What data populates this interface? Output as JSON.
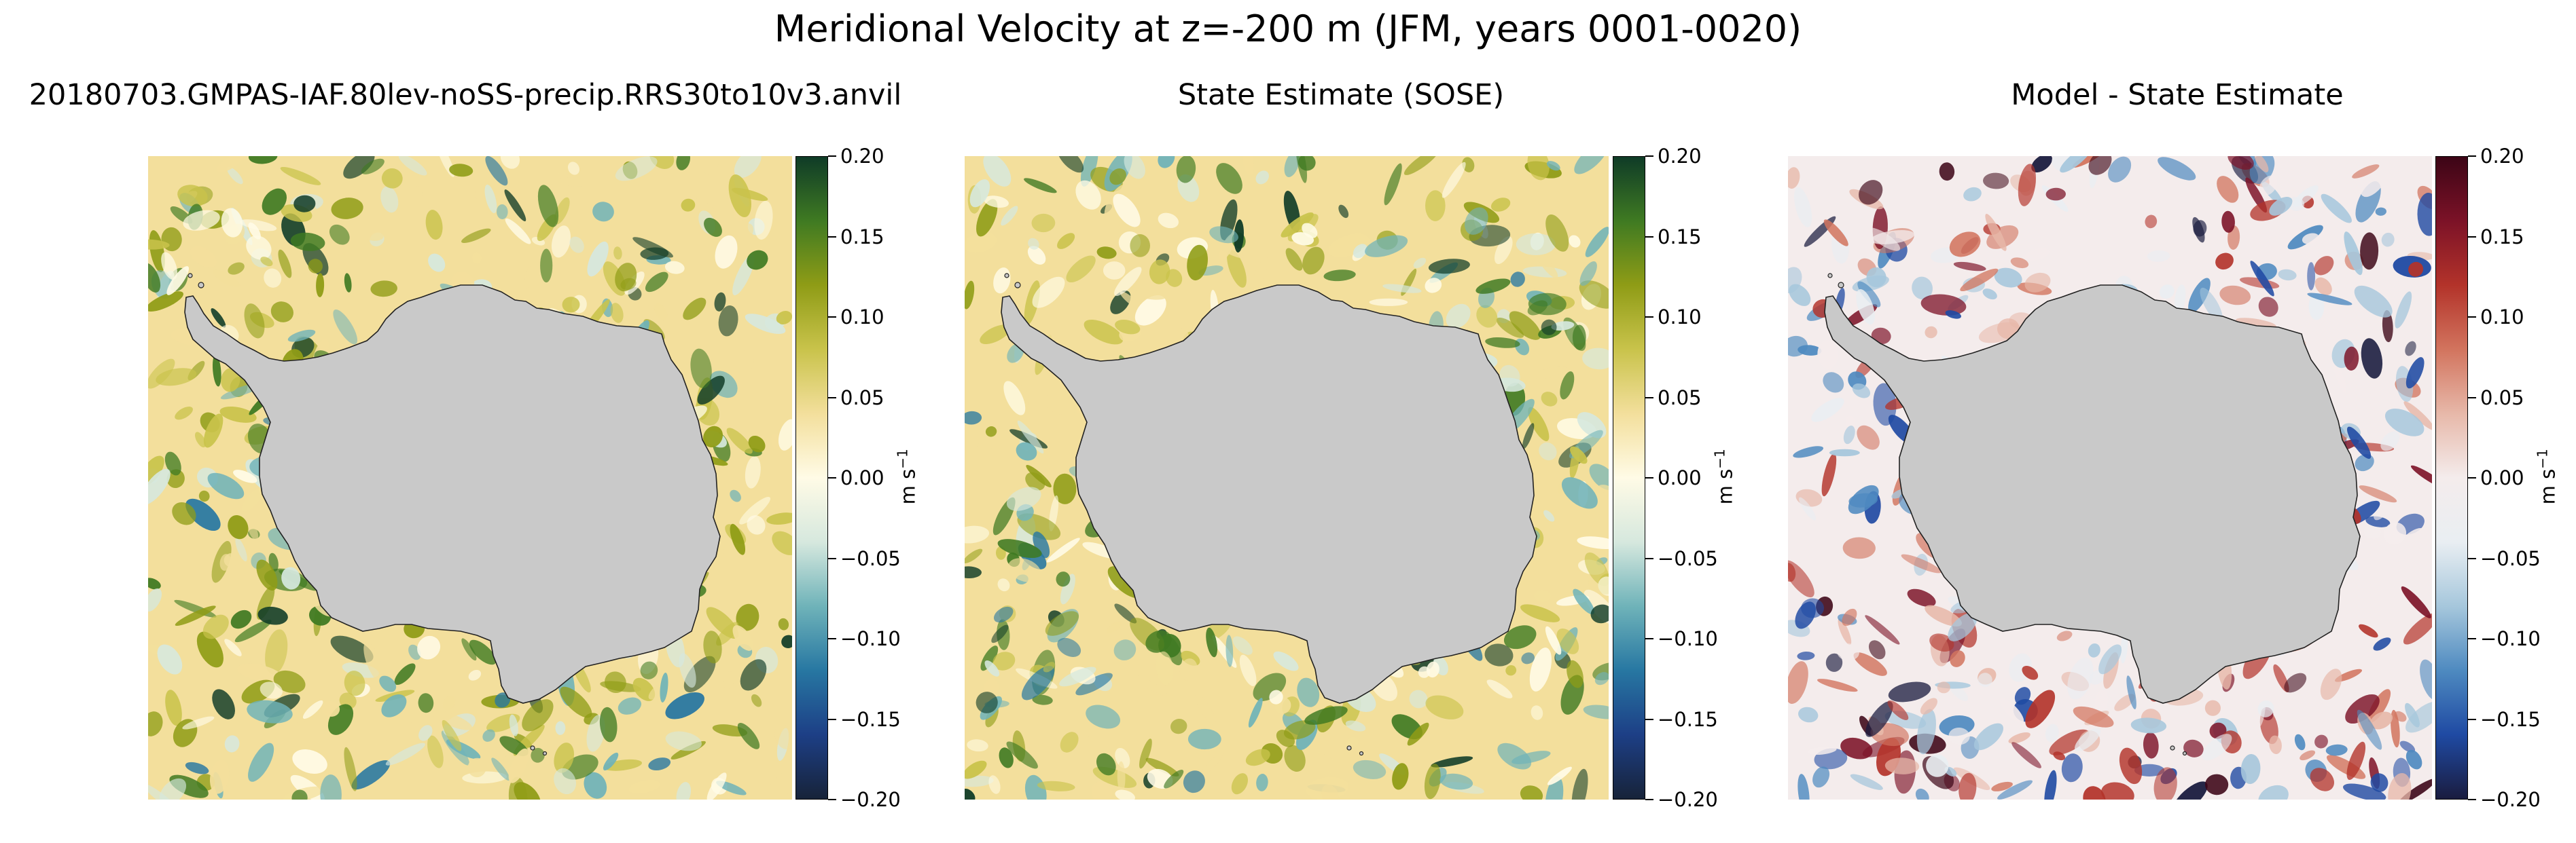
{
  "suptitle": "Meridional Velocity at z=-200 m (JFM, years 0001-0020)",
  "colors": {
    "land": "#c9c9c9",
    "coastline": "#222222",
    "ocean_background": "#fdf6d8",
    "cmap_diverging_green": [
      "#172339",
      "#1d3f86",
      "#2777a2",
      "#6fb3b9",
      "#d6e8de",
      "#fffbe6",
      "#f3df9c",
      "#c9c34b",
      "#8f9c16",
      "#3f7a22",
      "#0f3b27"
    ],
    "cmap_diverging_red": [
      "#1a1c3f",
      "#1f4aa3",
      "#4e8ac0",
      "#a6c7dc",
      "#e9eef2",
      "#f4ecec",
      "#e7b8a9",
      "#d2745e",
      "#b3332a",
      "#7c1227",
      "#3c0516"
    ]
  },
  "panels": [
    {
      "title": "20180703.GMPAS-IAF.80lev-noSS-precip.RRS30to10v3.anvil",
      "colorbar": {
        "ticks": [
          "0.20",
          "0.15",
          "0.10",
          "0.05",
          "0.00",
          "−0.05",
          "−0.10",
          "−0.15",
          "−0.20"
        ],
        "label": "m s",
        "label_exp": "−1",
        "colormap": "cmap_diverging_green",
        "range": [
          -0.2,
          0.2
        ]
      }
    },
    {
      "title": "State Estimate (SOSE)",
      "colorbar": {
        "ticks": [
          "0.20",
          "0.15",
          "0.10",
          "0.05",
          "0.00",
          "−0.05",
          "−0.10",
          "−0.15",
          "−0.20"
        ],
        "label": "m s",
        "label_exp": "−1",
        "colormap": "cmap_diverging_green",
        "range": [
          -0.2,
          0.2
        ]
      }
    },
    {
      "title": "Model - State Estimate",
      "colorbar": {
        "ticks": [
          "0.20",
          "0.15",
          "0.10",
          "0.05",
          "0.00",
          "−0.05",
          "−0.10",
          "−0.15",
          "−0.20"
        ],
        "label": "m s",
        "label_exp": "−1",
        "colormap": "cmap_diverging_red",
        "range": [
          -0.2,
          0.2
        ]
      }
    }
  ]
}
